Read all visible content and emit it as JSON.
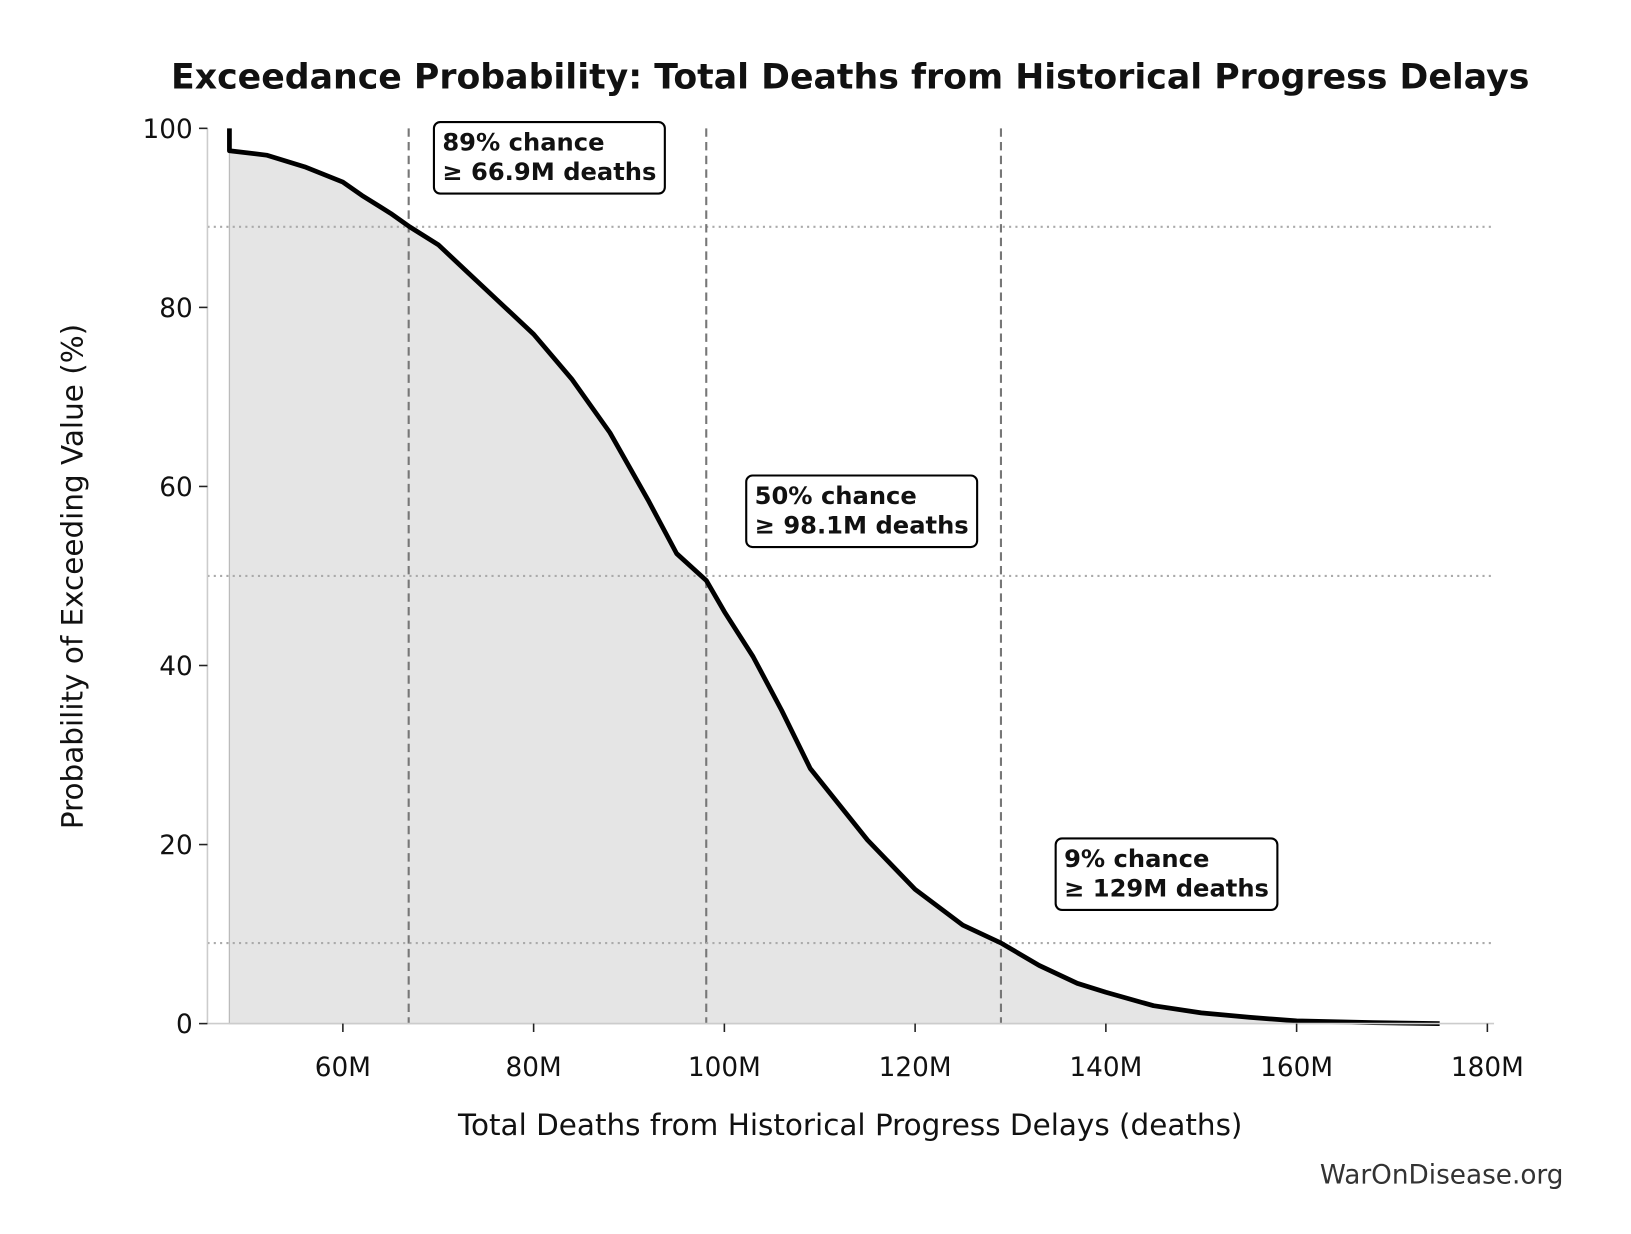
{
  "chart_data": {
    "type": "line",
    "title": "Exceedance Probability: Total Deaths from Historical Progress Delays",
    "x_label": "Total Deaths from Historical Progress Delays (deaths)",
    "y_label": "Probability of Exceeding Value (%)",
    "footer": "WarOnDisease.org",
    "color": "#000000",
    "fill_color": "#e5e5e5",
    "x": [
      48100000,
      48100000,
      52000000,
      56000000,
      60000000,
      62000000,
      65000000,
      67000000,
      70000000,
      73000000,
      76000000,
      80000000,
      84000000,
      88000000,
      92000000,
      95000000,
      98100000,
      100000000,
      103000000,
      106000000,
      109000000,
      112000000,
      115000000,
      120000000,
      125000000,
      129000000,
      133000000,
      137000000,
      140000000,
      145000000,
      150000000,
      155000000,
      160000000,
      168000000,
      175000000
    ],
    "values": [
      100,
      97.5,
      97,
      95.7,
      94,
      92.5,
      90.5,
      89,
      87,
      84,
      81,
      77,
      72,
      66,
      58.5,
      52.5,
      49.5,
      46,
      41,
      35,
      28.5,
      24.5,
      20.5,
      15,
      11,
      9,
      6.5,
      4.5,
      3.5,
      2,
      1.2,
      0.7,
      0.3,
      0.1,
      0
    ],
    "xlim": [
      45800000,
      180700000
    ],
    "ylim": [
      0,
      100
    ],
    "xticks": [
      {
        "value": 60000000,
        "label": "60M"
      },
      {
        "value": 80000000,
        "label": "80M"
      },
      {
        "value": 100000000,
        "label": "100M"
      },
      {
        "value": 120000000,
        "label": "120M"
      },
      {
        "value": 140000000,
        "label": "140M"
      },
      {
        "value": 160000000,
        "label": "160M"
      },
      {
        "value": 180000000,
        "label": "180M"
      }
    ],
    "yticks": [
      0,
      20,
      40,
      60,
      80,
      100
    ],
    "annotations": [
      {
        "probability": 89,
        "value": 66900000,
        "lines": [
          "89% chance",
          "≥ 66.9M deaths"
        ]
      },
      {
        "probability": 50,
        "value": 98100000,
        "lines": [
          "50% chance",
          "≥ 98.1M deaths"
        ]
      },
      {
        "probability": 9,
        "value": 129000000,
        "lines": [
          "9% chance",
          "≥ 129M deaths"
        ]
      }
    ]
  }
}
